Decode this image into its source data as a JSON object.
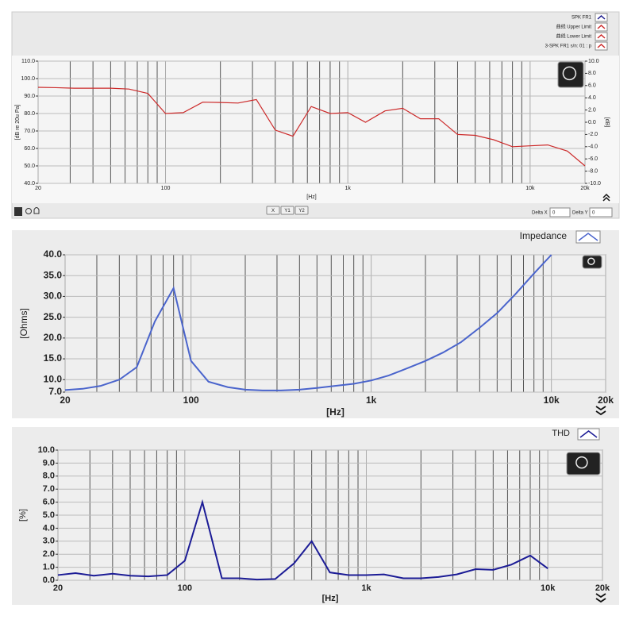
{
  "chart_data": [
    {
      "type": "line",
      "xscale": "log",
      "x_label": "[Hz]",
      "y_label": "[dB re 20u Pa]",
      "y2_label": "[dB]",
      "x": [
        20,
        25,
        31.5,
        40,
        50,
        63,
        80,
        100,
        125,
        160,
        200,
        250,
        315,
        400,
        500,
        630,
        800,
        1000,
        1250,
        1600,
        2000,
        2500,
        3150,
        4000,
        5000,
        6300,
        8000,
        10000,
        12500,
        16000,
        20000
      ],
      "series": [
        {
          "name": "3-SPK FR1 s/n: 01 : p",
          "color": "#cc2a2a",
          "values": [
            95,
            94.8,
            94.5,
            94.5,
            94.5,
            94,
            91.5,
            80,
            80.5,
            86.5,
            86.3,
            86,
            88,
            70.5,
            67,
            84,
            80,
            80.5,
            75,
            81.5,
            83,
            77,
            77,
            68,
            67.5,
            65,
            61,
            61.5,
            62,
            58.5,
            50
          ]
        }
      ],
      "legend_entries": [
        {
          "name": "SPK FR1",
          "color": "#1a1a8c"
        },
        {
          "name": "曲线 Upper Limit",
          "color": "#cc2a2a"
        },
        {
          "name": "曲线 Lower Limit",
          "color": "#cc2a2a"
        },
        {
          "name": "3-SPK FR1 s/n: 01 : p",
          "color": "#cc2a2a"
        }
      ],
      "xlim": [
        20,
        20000
      ],
      "xticks": [
        20,
        100,
        {
          "value": 1000,
          "label": "1k"
        },
        {
          "value": 10000,
          "label": "10k"
        },
        {
          "value": 20000,
          "label": "20k"
        }
      ],
      "ylim": [
        40,
        110
      ],
      "yticks": [
        {
          "value": 40,
          "label": "40.0"
        },
        {
          "value": 50,
          "label": "50.0"
        },
        {
          "value": 60,
          "label": "60.0"
        },
        {
          "value": 70,
          "label": "70.0"
        },
        {
          "value": 80,
          "label": "80.0"
        },
        {
          "value": 90,
          "label": "90.0"
        },
        {
          "value": 100,
          "label": "100.0"
        },
        {
          "value": 110,
          "label": "110.0"
        }
      ],
      "y2lim": [
        -10,
        10
      ],
      "y2ticks": [
        {
          "value": -10,
          "label": "-10.0"
        },
        {
          "value": -8,
          "label": "-8.0"
        },
        {
          "value": -6,
          "label": "-6.0"
        },
        {
          "value": -4,
          "label": "-4.0"
        },
        {
          "value": -2,
          "label": "-2.0"
        },
        {
          "value": 0,
          "label": "0.0"
        },
        {
          "value": 2,
          "label": "2.0"
        },
        {
          "value": 4,
          "label": "4.0"
        },
        {
          "value": 6,
          "label": "6.0"
        },
        {
          "value": 8,
          "label": "8.0"
        },
        {
          "value": 10,
          "label": "10.0"
        }
      ],
      "grid": true
    },
    {
      "type": "line",
      "xscale": "log",
      "x_label": "[Hz]",
      "y_label": "[Ohms]",
      "x": [
        20,
        25,
        31.5,
        40,
        50,
        63,
        80,
        100,
        125,
        160,
        200,
        250,
        315,
        400,
        500,
        630,
        800,
        1000,
        1250,
        1600,
        2000,
        2500,
        3150,
        4000,
        5000,
        6300,
        8000,
        10000
      ],
      "series": [
        {
          "name": "Impedance",
          "color": "#4a64cc",
          "values": [
            7.5,
            7.8,
            8.5,
            10,
            13,
            24,
            32,
            14.5,
            9.5,
            8.2,
            7.6,
            7.4,
            7.4,
            7.6,
            8,
            8.5,
            9,
            9.8,
            11,
            12.8,
            14.5,
            16.5,
            19,
            22.5,
            26,
            30.5,
            35.5,
            40
          ]
        }
      ],
      "xlim": [
        20,
        20000
      ],
      "xticks": [
        20,
        100,
        {
          "value": 1000,
          "label": "1k"
        },
        {
          "value": 10000,
          "label": "10k"
        },
        {
          "value": 20000,
          "label": "20k"
        }
      ],
      "ylim": [
        7,
        40
      ],
      "yticks": [
        {
          "value": 7,
          "label": "7.0"
        },
        {
          "value": 10,
          "label": "10.0"
        },
        {
          "value": 15,
          "label": "15.0"
        },
        {
          "value": 20,
          "label": "20.0"
        },
        {
          "value": 25,
          "label": "25.0"
        },
        {
          "value": 30,
          "label": "30.0"
        },
        {
          "value": 35,
          "label": "35.0"
        },
        {
          "value": 40,
          "label": "40.0"
        }
      ],
      "grid": true
    },
    {
      "type": "line",
      "xscale": "log",
      "x_label": "[Hz]",
      "y_label": "[%]",
      "x": [
        20,
        25,
        31.5,
        40,
        50,
        63,
        80,
        100,
        125,
        160,
        200,
        250,
        315,
        400,
        500,
        630,
        800,
        1000,
        1250,
        1600,
        2000,
        2500,
        3150,
        4000,
        5000,
        6300,
        8000,
        10000
      ],
      "series": [
        {
          "name": "THD",
          "color": "#1c1c96",
          "values": [
            0.4,
            0.55,
            0.35,
            0.5,
            0.35,
            0.3,
            0.4,
            1.5,
            6,
            0.15,
            0.15,
            0.05,
            0.1,
            1.3,
            3,
            0.6,
            0.4,
            0.4,
            0.45,
            0.15,
            0.15,
            0.25,
            0.45,
            0.85,
            0.8,
            1.2,
            1.9,
            0.9
          ]
        }
      ],
      "xlim": [
        20,
        20000
      ],
      "xticks": [
        20,
        100,
        {
          "value": 1000,
          "label": "1k"
        },
        {
          "value": 10000,
          "label": "10k"
        },
        {
          "value": 20000,
          "label": "20k"
        }
      ],
      "ylim": [
        0,
        10
      ],
      "yticks": [
        {
          "value": 0,
          "label": "0.0"
        },
        {
          "value": 1,
          "label": "1.0"
        },
        {
          "value": 2,
          "label": "2.0"
        },
        {
          "value": 3,
          "label": "3.0"
        },
        {
          "value": 4,
          "label": "4.0"
        },
        {
          "value": 5,
          "label": "5.0"
        },
        {
          "value": 6,
          "label": "6.0"
        },
        {
          "value": 7,
          "label": "7.0"
        },
        {
          "value": 8,
          "label": "8.0"
        },
        {
          "value": 9,
          "label": "9.0"
        },
        {
          "value": 10,
          "label": "10.0"
        }
      ],
      "grid": true
    }
  ],
  "ui": {
    "buttons": [
      "X",
      "Y1",
      "Y2"
    ],
    "delta_x_label": "Delta X",
    "delta_x_value": "0",
    "delta_y_label": "Delta Y",
    "delta_y_value": "0"
  }
}
